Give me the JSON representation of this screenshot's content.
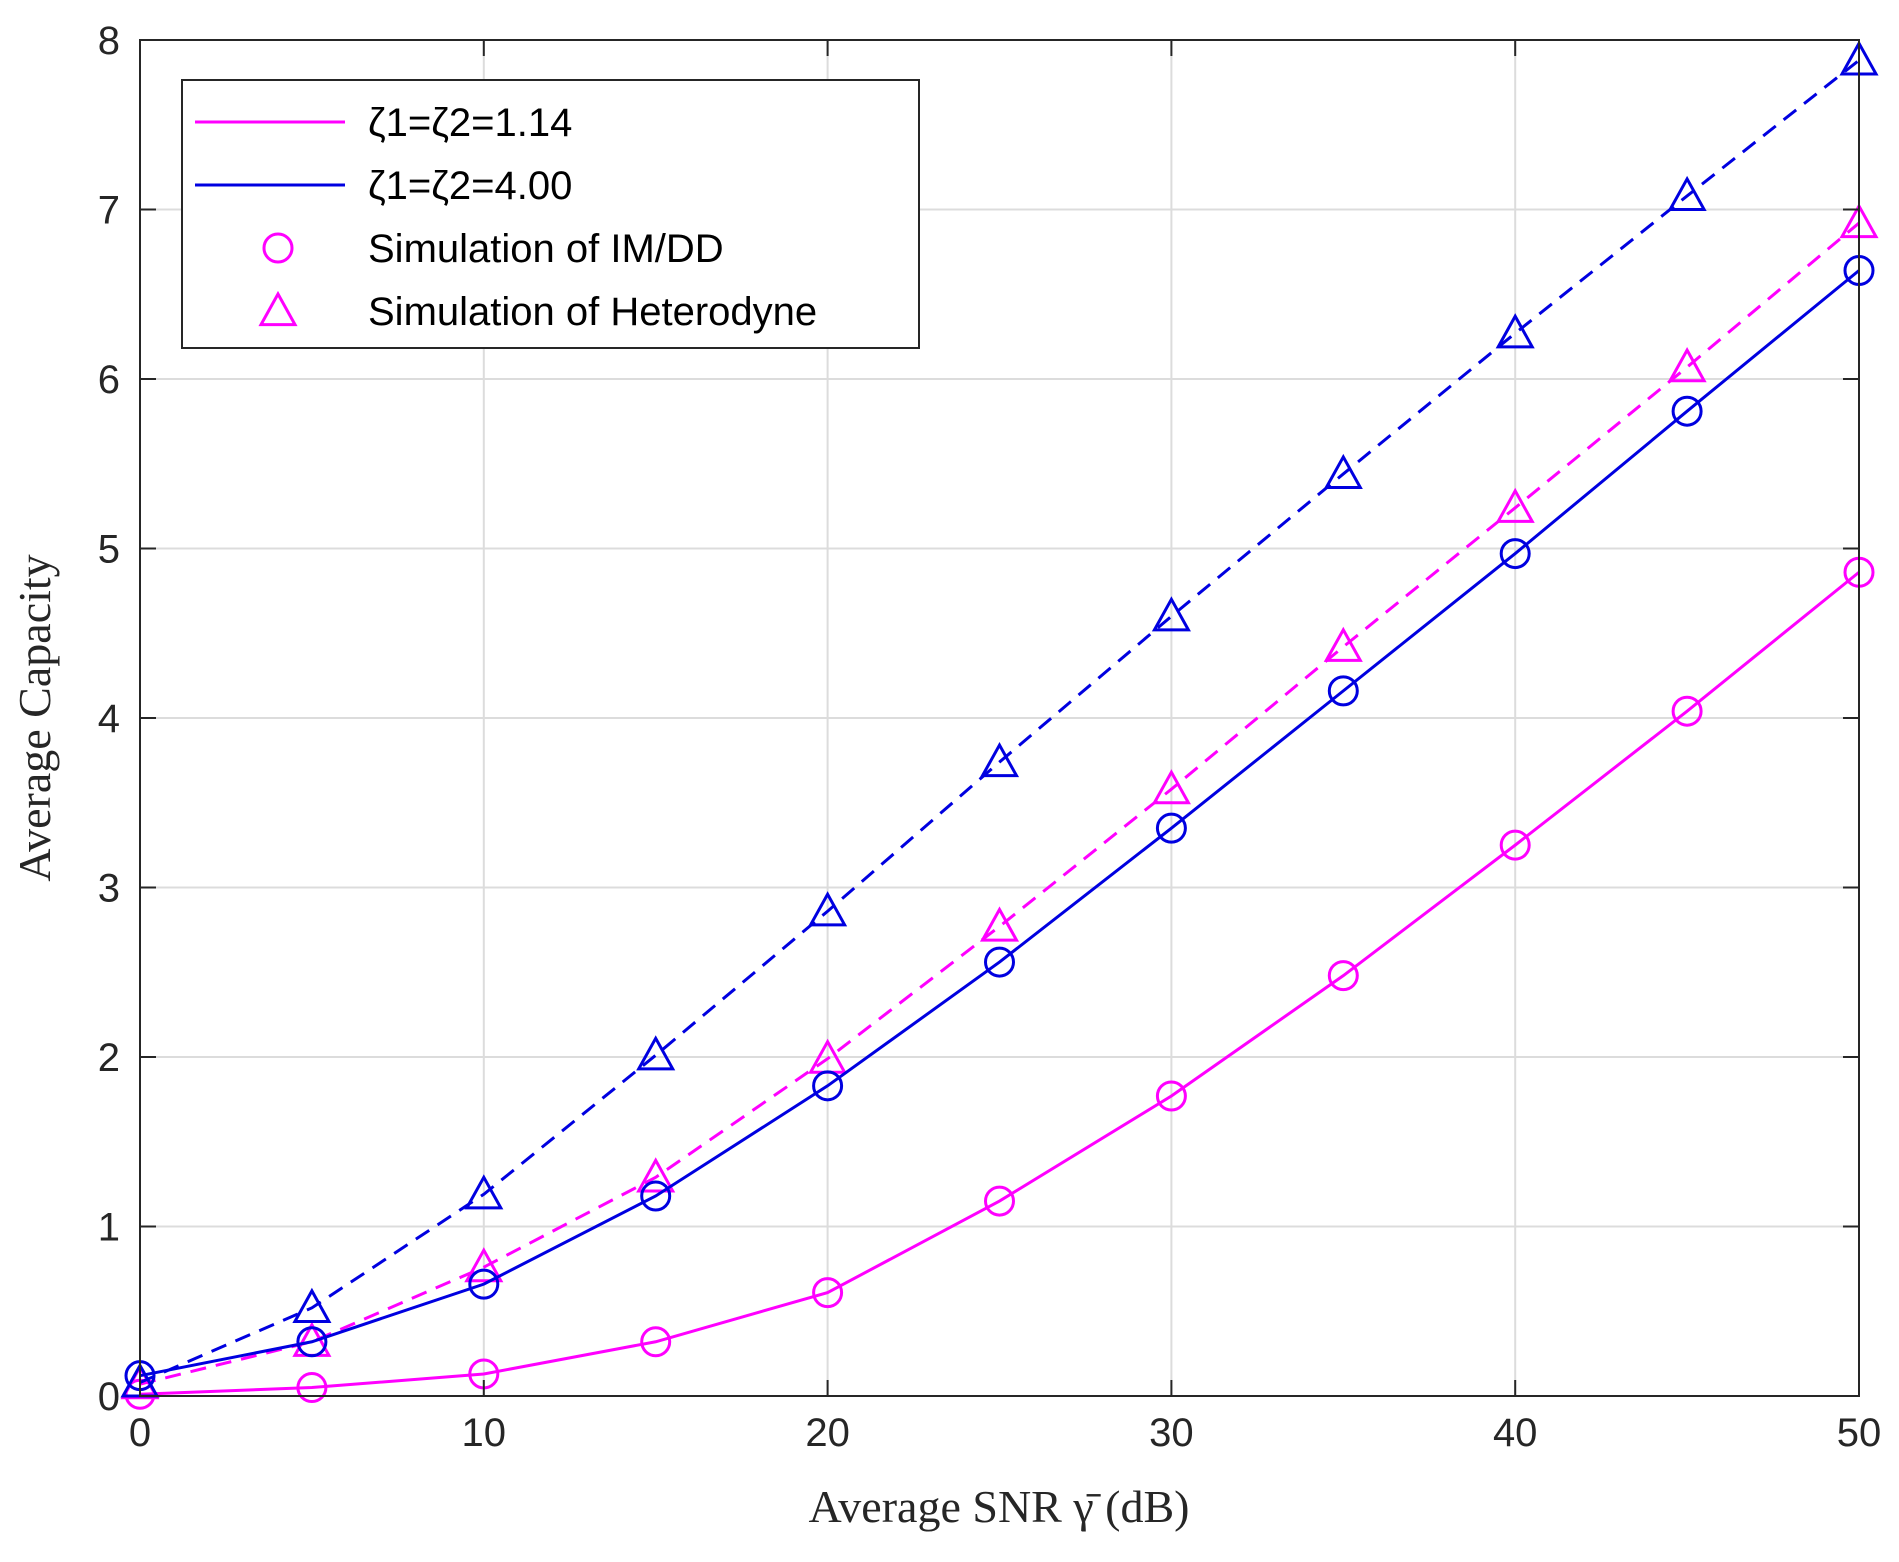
{
  "chart_data": {
    "type": "line",
    "title": "",
    "xlabel": "Average SNR γ̄ (dB)",
    "ylabel": "Average Capacity",
    "xlim": [
      0,
      50
    ],
    "ylim": [
      0,
      8
    ],
    "x_ticks": [
      0,
      10,
      20,
      30,
      40,
      50
    ],
    "y_ticks": [
      0,
      1,
      2,
      3,
      4,
      5,
      6,
      7,
      8
    ],
    "grid": true,
    "legend_position": "top-left",
    "legend": [
      {
        "label": "ζ1=ζ2=1.14",
        "color": "#ff00ff",
        "marker": "none",
        "line": "solid"
      },
      {
        "label": "ζ1=ζ2=4.00",
        "color": "#0000e0",
        "marker": "none",
        "line": "solid"
      },
      {
        "label": "Simulation of IM/DD",
        "color": "#ff00ff",
        "marker": "circle",
        "line": "none"
      },
      {
        "label": "Simulation of Heterodyne",
        "color": "#ff00ff",
        "marker": "triangle",
        "line": "none"
      }
    ],
    "x": [
      0,
      5,
      10,
      15,
      20,
      25,
      30,
      35,
      40,
      45,
      50
    ],
    "series": [
      {
        "name": "ζ1=ζ2=1.14 IM/DD",
        "color": "#ff00ff",
        "dash": "solid",
        "marker": "circle",
        "values": [
          0.01,
          0.05,
          0.13,
          0.32,
          0.61,
          1.15,
          1.77,
          2.48,
          3.25,
          4.04,
          4.86
        ]
      },
      {
        "name": "ζ1=ζ2=1.14 Heterodyne",
        "color": "#ff00ff",
        "dash": "dashed",
        "marker": "triangle",
        "values": [
          0.07,
          0.32,
          0.76,
          1.29,
          1.99,
          2.77,
          3.58,
          4.42,
          5.24,
          6.07,
          6.92
        ]
      },
      {
        "name": "ζ1=ζ2=4.00 IM/DD",
        "color": "#0000e0",
        "dash": "solid",
        "marker": "circle",
        "values": [
          0.12,
          0.32,
          0.66,
          1.18,
          1.83,
          2.56,
          3.35,
          4.16,
          4.97,
          5.81,
          6.64
        ]
      },
      {
        "name": "ζ1=ζ2=4.00 Heterodyne",
        "color": "#0000e0",
        "dash": "dashed",
        "marker": "triangle",
        "values": [
          0.08,
          0.52,
          1.19,
          2.01,
          2.86,
          3.74,
          4.6,
          5.44,
          6.27,
          7.08,
          7.88
        ]
      }
    ]
  }
}
